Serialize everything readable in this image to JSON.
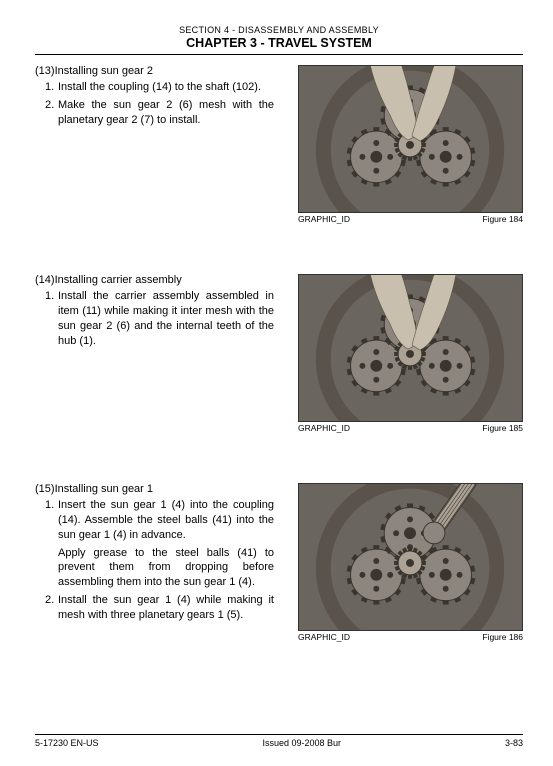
{
  "header": {
    "section": "SECTION 4 - DISASSEMBLY AND ASSEMBLY",
    "chapter": "CHAPTER 3 - TRAVEL SYSTEM"
  },
  "blocks": [
    {
      "heading_num": "(13)",
      "heading_text": "Installing sun gear 2",
      "items": [
        {
          "n": "1.",
          "text": "Install the coupling (14) to the shaft (102)."
        },
        {
          "n": "2.",
          "text": "Make the sun gear 2 (6) mesh with the planetary gear 2 (7) to install."
        }
      ],
      "graphic_id": "GRAPHIC_ID",
      "figure": "Figure 184"
    },
    {
      "heading_num": "(14)",
      "heading_text": "Installing carrier assembly",
      "items": [
        {
          "n": "1.",
          "text": "Install the carrier assembly assembled in item (11) while making it inter mesh with the sun gear 2 (6) and the internal teeth of the hub (1)."
        }
      ],
      "graphic_id": "GRAPHIC_ID",
      "figure": "Figure 185"
    },
    {
      "heading_num": "(15)",
      "heading_text": "Installing sun gear 1",
      "items": [
        {
          "n": "1.",
          "text": "Insert the sun gear 1 (4) into the coupling (14). Assemble the steel balls (41) into the sun gear 1 (4) in advance.",
          "sub": "Apply grease to the steel balls (41) to prevent them from dropping before assembling them into the sun gear 1 (4)."
        },
        {
          "n": "2.",
          "text": "Install the sun gear 1 (4) while making it mesh with three planetary gears 1 (5)."
        }
      ],
      "graphic_id": "GRAPHIC_ID",
      "figure": "Figure 186"
    }
  ],
  "footer": {
    "left": "5-17230 EN-US",
    "center": "Issued 09-2008   Bur",
    "right": "3-83"
  },
  "style": {
    "photo_bg": "#6b6560",
    "gear_fill": "#8d867f",
    "gear_stroke": "#3a352f",
    "hand_fill": "#c9bfae",
    "housing": "#5a534c",
    "sun_gear": "#aba295"
  }
}
